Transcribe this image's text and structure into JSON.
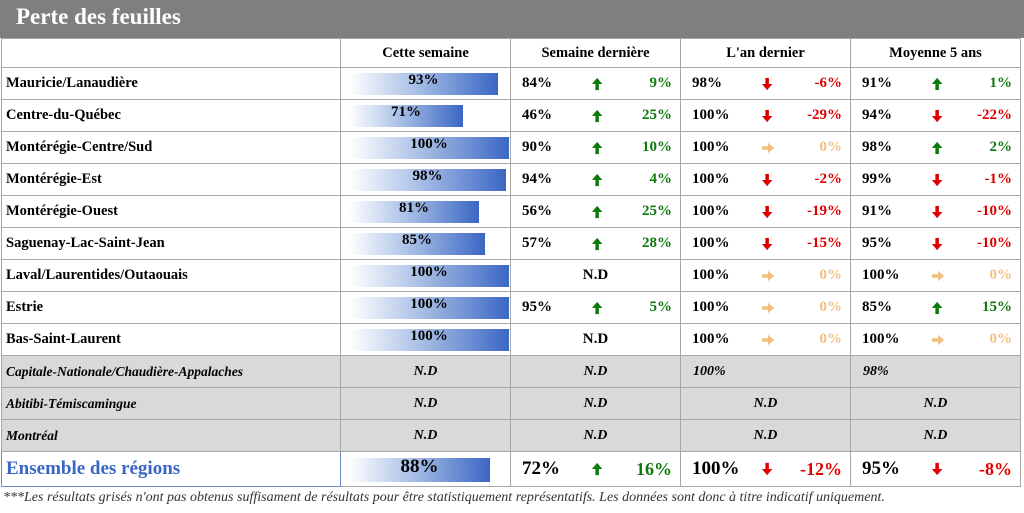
{
  "title": "Perte des feuilles",
  "headers": [
    "",
    "Cette semaine",
    "Semaine dernière",
    "L'an dernier",
    "Moyenne 5 ans"
  ],
  "rows": [
    {
      "region": "Mauricie/Lanaudière",
      "cur": "93%",
      "cur_frac": 0.93,
      "last": {
        "val": "84%",
        "dir": "up",
        "chg": "9%"
      },
      "year": {
        "val": "98%",
        "dir": "down",
        "chg": "-6%"
      },
      "avg": {
        "val": "91%",
        "dir": "up",
        "chg": "1%"
      }
    },
    {
      "region": "Centre-du-Québec",
      "cur": "71%",
      "cur_frac": 0.71,
      "last": {
        "val": "46%",
        "dir": "up",
        "chg": "25%"
      },
      "year": {
        "val": "100%",
        "dir": "down",
        "chg": "-29%"
      },
      "avg": {
        "val": "94%",
        "dir": "down",
        "chg": "-22%"
      }
    },
    {
      "region": "Montérégie-Centre/Sud",
      "cur": "100%",
      "cur_frac": 1.0,
      "last": {
        "val": "90%",
        "dir": "up",
        "chg": "10%"
      },
      "year": {
        "val": "100%",
        "dir": "flat",
        "chg": "0%"
      },
      "avg": {
        "val": "98%",
        "dir": "up",
        "chg": "2%"
      }
    },
    {
      "region": "Montérégie-Est",
      "cur": "98%",
      "cur_frac": 0.98,
      "last": {
        "val": "94%",
        "dir": "up",
        "chg": "4%"
      },
      "year": {
        "val": "100%",
        "dir": "down",
        "chg": "-2%"
      },
      "avg": {
        "val": "99%",
        "dir": "down",
        "chg": "-1%"
      }
    },
    {
      "region": "Montérégie-Ouest",
      "cur": "81%",
      "cur_frac": 0.81,
      "last": {
        "val": "56%",
        "dir": "up",
        "chg": "25%"
      },
      "year": {
        "val": "100%",
        "dir": "down",
        "chg": "-19%"
      },
      "avg": {
        "val": "91%",
        "dir": "down",
        "chg": "-10%"
      }
    },
    {
      "region": "Saguenay-Lac-Saint-Jean",
      "cur": "85%",
      "cur_frac": 0.85,
      "last": {
        "val": "57%",
        "dir": "up",
        "chg": "28%"
      },
      "year": {
        "val": "100%",
        "dir": "down",
        "chg": "-15%"
      },
      "avg": {
        "val": "95%",
        "dir": "down",
        "chg": "-10%"
      }
    },
    {
      "region": "Laval/Laurentides/Outaouais",
      "cur": "100%",
      "cur_frac": 1.0,
      "last": "N.D",
      "year": {
        "val": "100%",
        "dir": "flat",
        "chg": "0%"
      },
      "avg": {
        "val": "100%",
        "dir": "flat",
        "chg": "0%"
      }
    },
    {
      "region": "Estrie",
      "cur": "100%",
      "cur_frac": 1.0,
      "last": {
        "val": "95%",
        "dir": "up",
        "chg": "5%"
      },
      "year": {
        "val": "100%",
        "dir": "flat",
        "chg": "0%"
      },
      "avg": {
        "val": "85%",
        "dir": "up",
        "chg": "15%"
      }
    },
    {
      "region": "Bas-Saint-Laurent",
      "cur": "100%",
      "cur_frac": 1.0,
      "last": "N.D",
      "year": {
        "val": "100%",
        "dir": "flat",
        "chg": "0%"
      },
      "avg": {
        "val": "100%",
        "dir": "flat",
        "chg": "0%"
      }
    }
  ],
  "gray_rows": [
    {
      "region": "Capitale-Nationale/Chaudière-Appalaches",
      "cur": "N.D",
      "last": "N.D",
      "year": "100%",
      "avg": "98%"
    },
    {
      "region": "Abitibi-Témiscamingue",
      "cur": "N.D",
      "last": "N.D",
      "year": "N.D",
      "avg": "N.D"
    },
    {
      "region": "Montréal",
      "cur": "N.D",
      "last": "N.D",
      "year": "N.D",
      "avg": "N.D"
    }
  ],
  "total": {
    "region": "Ensemble des régions",
    "cur": "88%",
    "cur_frac": 0.88,
    "last": {
      "val": "72%",
      "dir": "up",
      "chg": "16%"
    },
    "year": {
      "val": "100%",
      "dir": "down",
      "chg": "-12%"
    },
    "avg": {
      "val": "95%",
      "dir": "down",
      "chg": "-8%"
    }
  },
  "footnote": "***Les résultats grisés n'ont pas obtenus suffisament de résultats pour être statistiquement représentatifs. Les données sont donc à titre indicatif uniquement.",
  "icons": {
    "up": "arrow-up-icon",
    "down": "arrow-down-icon",
    "flat": "arrow-right-icon"
  },
  "colors": {
    "up": "#0e7a0e",
    "down": "#e00000",
    "flat": "#f0c080",
    "bar": "#3a66c4",
    "gray_row": "#d9d9d9",
    "title_bg": "#7f7f7f"
  }
}
